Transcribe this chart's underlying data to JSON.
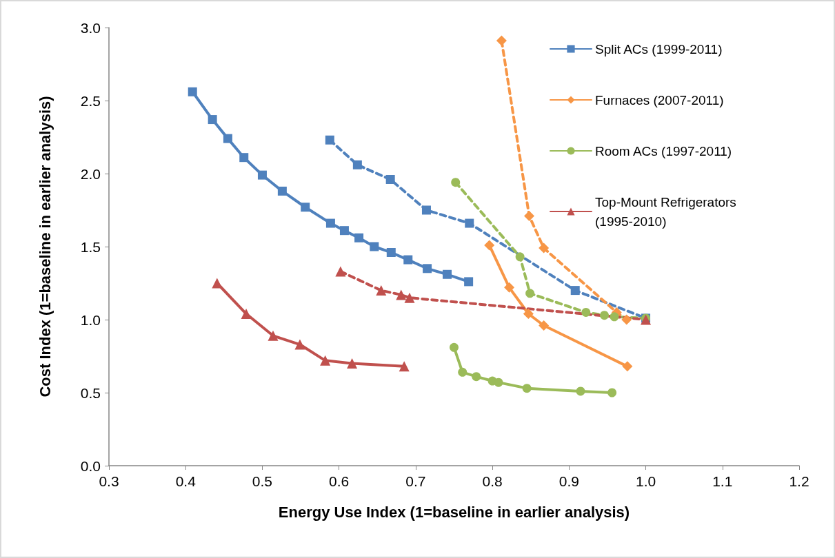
{
  "chart_data": {
    "type": "line",
    "xlabel": "Energy Use Index (1=baseline in earlier analysis)",
    "ylabel": "Cost Index (1=baseline in earlier analysis)",
    "xlim": [
      0.3,
      1.2
    ],
    "xticks": [
      {
        "value": 0.3,
        "label": "0.3"
      },
      {
        "value": 0.4,
        "label": "0.4"
      },
      {
        "value": 0.5,
        "label": "0.5"
      },
      {
        "value": 0.6,
        "label": "0.6"
      },
      {
        "value": 0.7,
        "label": "0.7"
      },
      {
        "value": 0.8,
        "label": "0.8"
      },
      {
        "value": 0.9,
        "label": "0.9"
      },
      {
        "value": 1.0,
        "label": "1.0"
      },
      {
        "value": 1.1,
        "label": "1.1"
      },
      {
        "value": 1.2,
        "label": "1.2"
      }
    ],
    "ylim": [
      0,
      3
    ],
    "yticks": [
      {
        "value": 0,
        "label": "0.0"
      },
      {
        "value": 0.5,
        "label": "0.5"
      },
      {
        "value": 1.0,
        "label": "1.0"
      },
      {
        "value": 1.5,
        "label": "1.5"
      },
      {
        "value": 2.0,
        "label": "2.0"
      },
      {
        "value": 2.5,
        "label": "2.5"
      },
      {
        "value": 3.0,
        "label": "3.0"
      }
    ],
    "grid": false,
    "legend": "top right",
    "series": [
      {
        "name": "Split ACs (1999-2011)",
        "color": "#4f81bd",
        "marker": "square",
        "line_style": "solid",
        "x": [
          0.409,
          0.435,
          0.455,
          0.476,
          0.5,
          0.526,
          0.556,
          0.589,
          0.607,
          0.626,
          0.646,
          0.668,
          0.69,
          0.715,
          0.741,
          0.769
        ],
        "values": [
          2.56,
          2.37,
          2.24,
          2.11,
          1.99,
          1.88,
          1.77,
          1.66,
          1.61,
          1.56,
          1.5,
          1.46,
          1.41,
          1.35,
          1.31,
          1.26
        ]
      },
      {
        "name": "Furnaces (2007-2011)",
        "color": "#f79646",
        "marker": "diamond",
        "line_style": "solid",
        "x": [
          0.796,
          0.822,
          0.847,
          0.867,
          0.976
        ],
        "values": [
          1.51,
          1.22,
          1.04,
          0.96,
          0.68
        ]
      },
      {
        "name": "Room ACs (1997-2011)",
        "color": "#9bbb59",
        "marker": "circle",
        "line_style": "solid",
        "x": [
          0.75,
          0.761,
          0.779,
          0.8,
          0.808,
          0.845,
          0.915,
          0.956
        ],
        "values": [
          0.81,
          0.64,
          0.61,
          0.58,
          0.57,
          0.53,
          0.51,
          0.5
        ]
      },
      {
        "name": "Top-Mount Refrigerators (1995-2010)",
        "color": "#c0504d",
        "marker": "triangle",
        "line_style": "solid",
        "x": [
          0.441,
          0.479,
          0.514,
          0.549,
          0.582,
          0.617,
          0.685
        ],
        "values": [
          1.25,
          1.04,
          0.89,
          0.83,
          0.72,
          0.7,
          0.68
        ]
      },
      {
        "color": "#4f81bd",
        "marker": "square",
        "line_style": "dashed",
        "x": [
          0.588,
          0.624,
          0.667,
          0.714,
          0.77,
          0.908,
          1.0
        ],
        "values": [
          2.23,
          2.06,
          1.96,
          1.75,
          1.66,
          1.2,
          1.01
        ]
      },
      {
        "color": "#f79646",
        "marker": "diamond",
        "line_style": "dashed",
        "x": [
          0.812,
          0.848,
          0.867,
          0.962,
          0.975
        ],
        "values": [
          2.91,
          1.71,
          1.49,
          1.05,
          1.0
        ]
      },
      {
        "color": "#9bbb59",
        "marker": "circle",
        "line_style": "dashed",
        "x": [
          0.752,
          0.836,
          0.849,
          0.922,
          0.946,
          0.959,
          1.0
        ],
        "values": [
          1.94,
          1.43,
          1.18,
          1.05,
          1.03,
          1.02,
          1.01
        ]
      },
      {
        "color": "#c0504d",
        "marker": "triangle",
        "line_style": "dashed",
        "x": [
          0.602,
          0.655,
          0.681,
          0.692,
          1.0
        ],
        "values": [
          1.33,
          1.2,
          1.17,
          1.15,
          1.0
        ]
      }
    ]
  }
}
